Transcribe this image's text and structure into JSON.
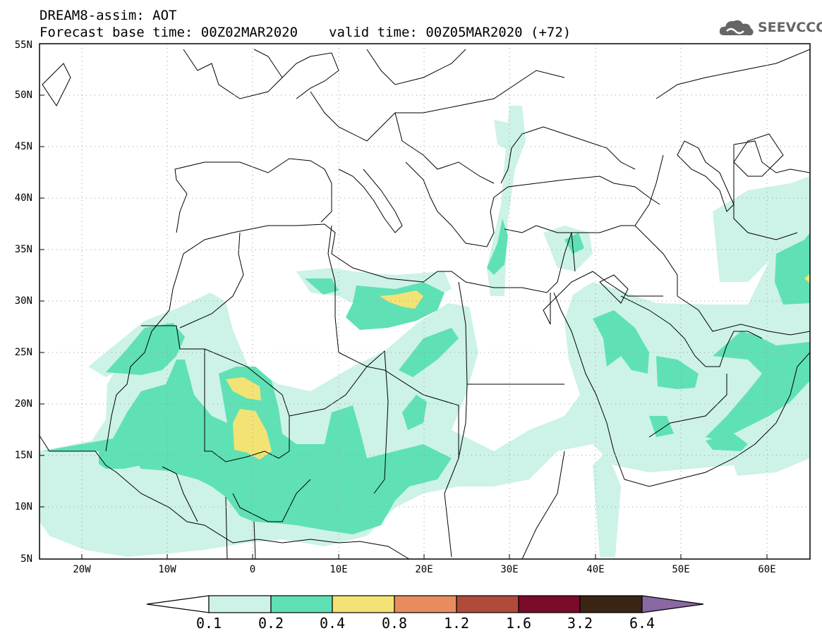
{
  "header": {
    "title": "DREAM8-assim: AOT",
    "base_time": "Forecast base time: 00Z02MAR2020",
    "valid_time": "valid time: 00Z05MAR2020 (+72)"
  },
  "logo": {
    "text": "SEEVCCC",
    "icon": "cloud-icon"
  },
  "map": {
    "lat_labels": [
      "55N",
      "50N",
      "45N",
      "40N",
      "35N",
      "30N",
      "25N",
      "20N",
      "15N",
      "10N",
      "5N"
    ],
    "lon_labels": [
      "20W",
      "10W",
      "0",
      "10E",
      "20E",
      "30E",
      "40E",
      "50E",
      "60E"
    ]
  },
  "colorbar": {
    "colors": [
      "#ffffff",
      "#cdf2e8",
      "#5fe1b5",
      "#f3e374",
      "#e88c5f",
      "#b04a3b",
      "#7c0a2a",
      "#3a2515",
      "#8a68a4"
    ],
    "labels": [
      "0.1",
      "0.2",
      "0.4",
      "0.8",
      "1.2",
      "1.6",
      "3.2",
      "6.4"
    ]
  }
}
